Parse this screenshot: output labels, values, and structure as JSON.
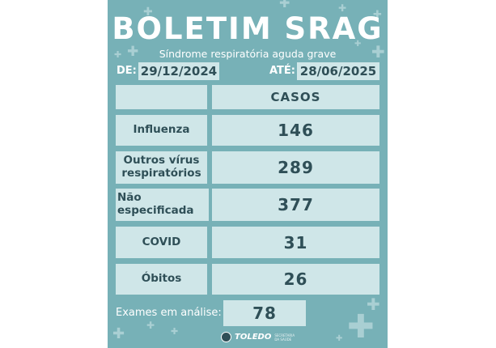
{
  "title": "BOLETIM SRAG",
  "subtitle": "Síndrome respiratória aguda grave",
  "period": {
    "from_label": "DE:",
    "from_date": "29/12/2024",
    "to_label": "ATÉ:",
    "to_date": "28/06/2025"
  },
  "table": {
    "header": "CASOS",
    "rows": [
      {
        "label": "Influenza",
        "value": "146"
      },
      {
        "label": "Outros vírus respiratórios",
        "value": "289"
      },
      {
        "label": "Não especificada",
        "value": "377"
      },
      {
        "label": "COVID",
        "value": "31"
      },
      {
        "label": "Óbitos",
        "value": "26"
      }
    ]
  },
  "exams": {
    "label": "Exames em análise:",
    "value": "78"
  },
  "footer": {
    "logo_name": "TOLEDO",
    "logo_sub": "SECRETARIA DA SAÚDE"
  },
  "colors": {
    "background": "#77b1b7",
    "cell": "#cfe6e8",
    "text_dark": "#2f4f57",
    "text_light": "#ffffff"
  }
}
